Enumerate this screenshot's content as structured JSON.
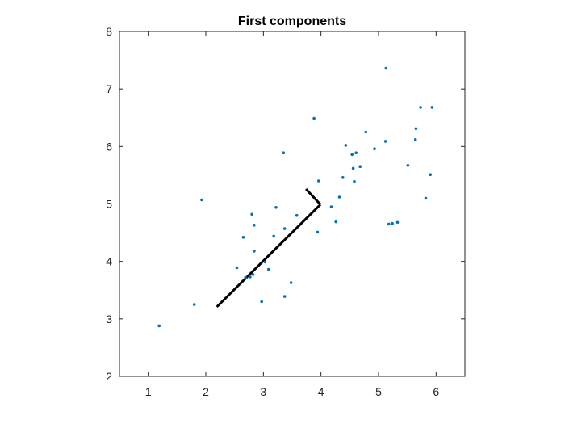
{
  "chart_data": {
    "type": "scatter",
    "title": "First components",
    "xlabel": "",
    "ylabel": "",
    "xlim": [
      0.5,
      6.5
    ],
    "ylim": [
      2,
      8
    ],
    "xticks": [
      1,
      2,
      3,
      4,
      5,
      6
    ],
    "yticks": [
      2,
      3,
      4,
      5,
      6,
      7,
      8
    ],
    "grid": false,
    "box": true,
    "colors": {
      "points": "#0072BD",
      "lines": "#000000",
      "axes": "#262626"
    },
    "series": [
      {
        "kind": "points",
        "points": [
          [
            1.19,
            2.88
          ],
          [
            1.8,
            3.25
          ],
          [
            1.93,
            5.07
          ],
          [
            2.54,
            3.89
          ],
          [
            2.65,
            4.42
          ],
          [
            2.69,
            3.72
          ],
          [
            2.77,
            3.73
          ],
          [
            2.8,
            4.82
          ],
          [
            2.82,
            3.77
          ],
          [
            2.84,
            4.63
          ],
          [
            2.84,
            4.18
          ],
          [
            2.97,
            3.3
          ],
          [
            3.03,
            3.99
          ],
          [
            3.09,
            3.86
          ],
          [
            3.18,
            4.44
          ],
          [
            3.22,
            4.94
          ],
          [
            3.35,
            5.89
          ],
          [
            3.37,
            4.57
          ],
          [
            3.37,
            3.39
          ],
          [
            3.48,
            3.63
          ],
          [
            3.58,
            4.8
          ],
          [
            3.88,
            6.49
          ],
          [
            3.94,
            4.51
          ],
          [
            3.96,
            5.4
          ],
          [
            4.18,
            4.95
          ],
          [
            4.26,
            4.69
          ],
          [
            4.32,
            5.12
          ],
          [
            4.38,
            5.46
          ],
          [
            4.43,
            6.02
          ],
          [
            4.54,
            5.86
          ],
          [
            4.56,
            5.62
          ],
          [
            4.58,
            5.39
          ],
          [
            4.61,
            5.89
          ],
          [
            4.68,
            5.65
          ],
          [
            4.78,
            6.25
          ],
          [
            4.93,
            5.96
          ],
          [
            5.12,
            6.09
          ],
          [
            5.13,
            7.36
          ],
          [
            5.18,
            4.65
          ],
          [
            5.24,
            4.66
          ],
          [
            5.33,
            4.68
          ],
          [
            5.51,
            5.67
          ],
          [
            5.64,
            6.12
          ],
          [
            5.65,
            6.31
          ],
          [
            5.73,
            6.68
          ],
          [
            5.82,
            5.1
          ],
          [
            5.9,
            5.51
          ],
          [
            5.93,
            6.68
          ]
        ]
      },
      {
        "kind": "line",
        "points": [
          [
            3.99,
            4.99
          ],
          [
            2.19,
            3.21
          ]
        ]
      },
      {
        "kind": "line",
        "points": [
          [
            3.99,
            4.99
          ],
          [
            3.74,
            5.26
          ]
        ]
      }
    ]
  }
}
